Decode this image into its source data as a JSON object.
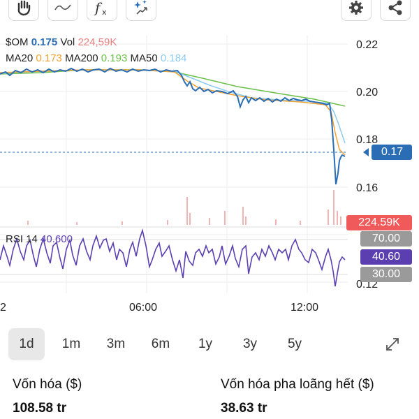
{
  "toolbar": {
    "left_icons": [
      "hand-icon",
      "line-tool-icon",
      "function-icon",
      "ai-sparkle-icon"
    ],
    "right_icons": [
      "gear-icon",
      "share-icon"
    ]
  },
  "legend": {
    "symbol": "$OM",
    "price": "0.175",
    "vol_label": "Vol",
    "vol_value": "224,59K",
    "ma20_label": "MA20",
    "ma20_value": "0.173",
    "ma200_label": "MA200",
    "ma200_value": "0.193",
    "ma50_label": "MA50",
    "ma50_value": "0.184"
  },
  "rsi": {
    "label": "RSI 14",
    "value": "40.600"
  },
  "axis": {
    "price_ticks": [
      "0.22",
      "0.20",
      "0.18",
      "0.16"
    ],
    "rsi_tick_bottom": "0.12",
    "time_ticks": [
      "2",
      "06:00",
      "12:00"
    ]
  },
  "badges": {
    "price": "0.17",
    "volume": "224.59K",
    "rsi_upper": "70.00",
    "rsi_value": "40.60",
    "rsi_lower": "30.00"
  },
  "colors": {
    "price": "#2a6db5",
    "ma20": "#f0a030",
    "ma200": "#6cc04a",
    "ma50": "#8ccbf0",
    "volume": "#e88080",
    "rsi": "#5b3fb0",
    "badge_gray": "#9a9a9a"
  },
  "periods": {
    "items": [
      "1d",
      "1m",
      "3m",
      "6m",
      "1y",
      "3y",
      "5y"
    ],
    "active": "1d",
    "expand_icon": "expand-icon"
  },
  "stats": {
    "market_cap_label": "Vốn hóa ($)",
    "market_cap_value": "108.58 tr",
    "fdv_label": "Vốn hóa pha loãng hết ($)",
    "fdv_value": "38.63 tr"
  }
}
